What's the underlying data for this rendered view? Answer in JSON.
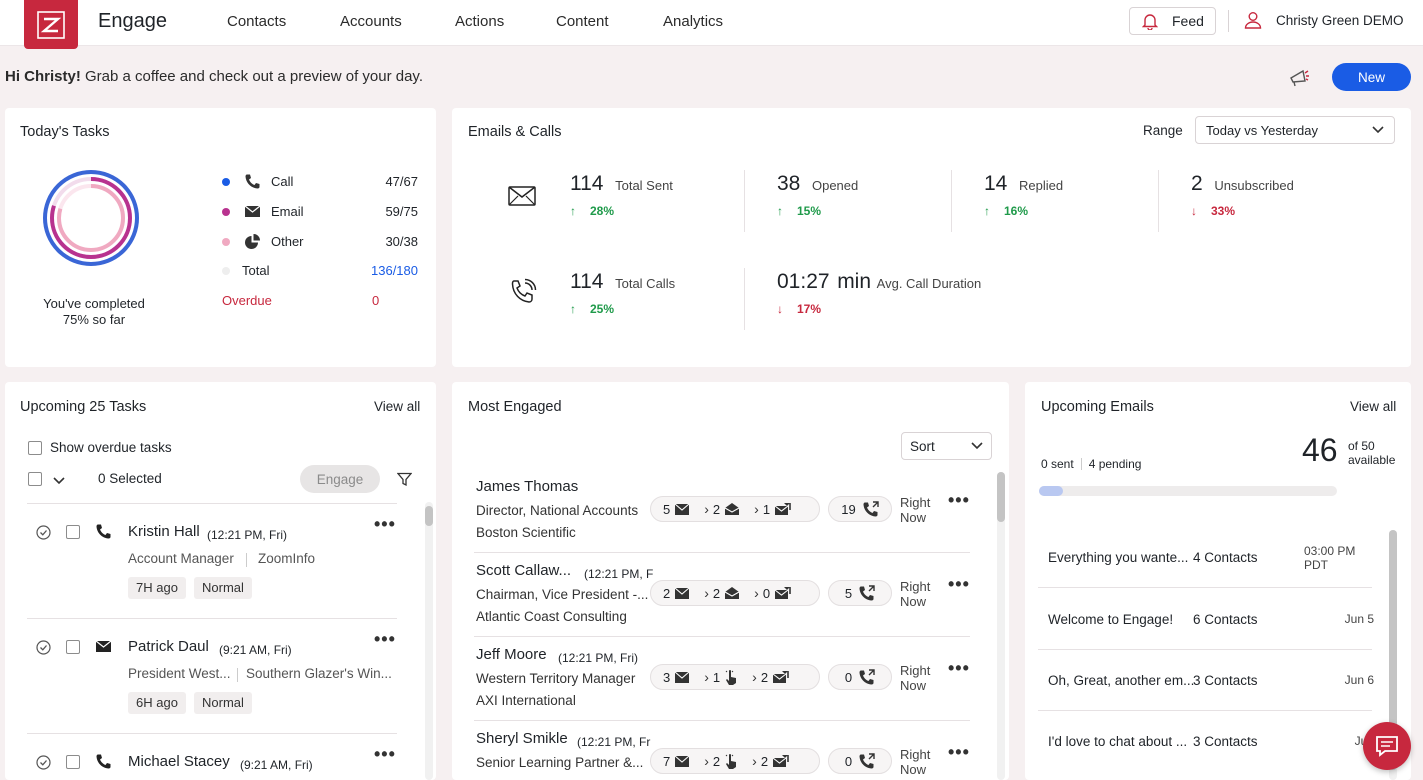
{
  "app": {
    "name": "Engage",
    "brand_color": "#c7283e",
    "accent": "#1a5ce5"
  },
  "nav": [
    "Contacts",
    "Accounts",
    "Actions",
    "Content",
    "Analytics"
  ],
  "header": {
    "feed": "Feed",
    "user": "Christy Green DEMO"
  },
  "greeting": {
    "name": "Hi Christy!",
    "message": " Grab a coffee and check out a preview of your day."
  },
  "new_button": "New",
  "todays_tasks": {
    "title": "Today's Tasks",
    "completed_text": "You've completed",
    "completed_pct": "75% so far",
    "rows": [
      {
        "label": "Call",
        "value": "47/67",
        "color": "#1a5ce5"
      },
      {
        "label": "Email",
        "value": "59/75",
        "color": "#b8328f"
      },
      {
        "label": "Other",
        "value": "30/38",
        "color": "#f0a9c1"
      },
      {
        "label": "Total",
        "value": "136/180",
        "color": "#eeeeee"
      }
    ],
    "overdue_label": "Overdue",
    "overdue_value": "0"
  },
  "emails_calls": {
    "title": "Emails & Calls",
    "range_label": "Range",
    "range_value": "Today vs Yesterday",
    "stats": [
      {
        "num": "114",
        "label": "Total Sent",
        "delta": "28%",
        "dir": "up"
      },
      {
        "num": "38",
        "label": "Opened",
        "delta": "15%",
        "dir": "up"
      },
      {
        "num": "14",
        "label": "Replied",
        "delta": "16%",
        "dir": "up"
      },
      {
        "num": "2",
        "label": "Unsubscribed",
        "delta": "33%",
        "dir": "down"
      }
    ],
    "calls": [
      {
        "num": "114",
        "label": "Total Calls",
        "delta": "25%",
        "dir": "up"
      },
      {
        "num": "01:27",
        "unit": "min",
        "label": "Avg. Call Duration",
        "delta": "17%",
        "dir": "down"
      }
    ]
  },
  "upcoming_tasks": {
    "title": "Upcoming 25 Tasks",
    "view_all": "View all",
    "show_overdue": "Show overdue tasks",
    "selected": "0 Selected",
    "engage": "Engage",
    "tasks": [
      {
        "name": "Kristin Hall",
        "time": "(12:21 PM, Fri)",
        "title": "Account Manager",
        "company": "ZoomInfo",
        "ago": "7H ago",
        "priority": "Normal",
        "type": "call"
      },
      {
        "name": "Patrick Daul",
        "time": "(9:21 AM, Fri)",
        "title": "President West...",
        "company": "Southern Glazer's Win...",
        "ago": "6H ago",
        "priority": "Normal",
        "type": "email"
      },
      {
        "name": "Michael Stacey",
        "time": "(9:21 AM, Fri)",
        "type": "call"
      }
    ]
  },
  "most_engaged": {
    "title": "Most Engaged",
    "sort": "Sort",
    "people": [
      {
        "name": "James Thomas",
        "time": "",
        "title": "Director, National Accounts",
        "company": "Boston Scientific",
        "sent": "5",
        "opened": "2",
        "third": "1",
        "third_kind": "reply",
        "calls": "19",
        "when": "Right Now"
      },
      {
        "name": "Scott Callaw...",
        "time": "(12:21 PM, F",
        "title": "Chairman, Vice President -...",
        "company": "Atlantic Coast Consulting",
        "sent": "2",
        "opened": "2",
        "third": "0",
        "third_kind": "reply",
        "calls": "5",
        "when": "Right Now"
      },
      {
        "name": "Jeff Moore",
        "time": "(12:21 PM, Fri)",
        "title": "Western Territory Manager",
        "company": "AXI International",
        "sent": "3",
        "opened": "1",
        "third": "2",
        "third_kind": "reply",
        "calls": "0",
        "when": "Right Now",
        "click": true
      },
      {
        "name": "Sheryl Smikle",
        "time": "(12:21 PM, Fr",
        "title": "Senior Learning Partner &...",
        "company": "",
        "sent": "7",
        "opened": "2",
        "third": "2",
        "third_kind": "reply",
        "calls": "0",
        "when": "Right Now",
        "click": true
      }
    ]
  },
  "upcoming_emails": {
    "title": "Upcoming Emails",
    "view_all": "View all",
    "sent": "0 sent",
    "pending": "4 pending",
    "available_num": "46",
    "available_of": "of 50",
    "available_word": "available",
    "progress": 0.08,
    "emails": [
      {
        "subject": "Everything you wante...",
        "contacts": "4 Contacts",
        "date": "03:00 PM",
        "date2": "PDT"
      },
      {
        "subject": "Welcome to Engage!",
        "contacts": "6 Contacts",
        "date": "Jun 5",
        "date2": ""
      },
      {
        "subject": "Oh, Great, another em...",
        "contacts": "3 Contacts",
        "date": "Jun 6",
        "date2": ""
      },
      {
        "subject": "I'd love to chat about ...",
        "contacts": "3 Contacts",
        "date": "Jun",
        "date2": ""
      }
    ]
  }
}
